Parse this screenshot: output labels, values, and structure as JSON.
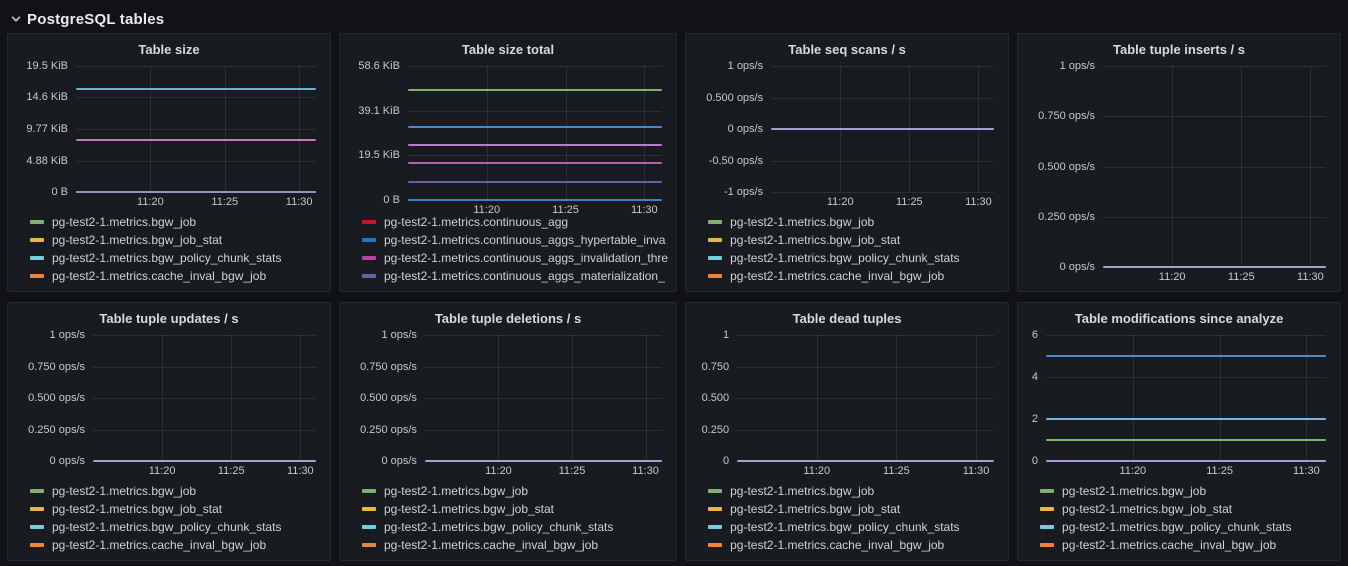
{
  "row_header": {
    "title": "PostgreSQL tables"
  },
  "colors": {
    "page_bg": "#111217",
    "panel_bg": "#181b1f",
    "grid_line": "rgba(204,204,220,0.11)",
    "text_primary": "#d8d9da",
    "text_secondary": "#c7c8cd"
  },
  "panels": [
    {
      "title": "Table size",
      "chart_data": {
        "type": "line",
        "x_ticks": [
          "11:20",
          "11:25",
          "11:30"
        ],
        "ylim": [
          0,
          19.53
        ],
        "ylabel_unit": "KiB",
        "y_ticks": [
          {
            "label": "19.5 KiB",
            "value": 19.53
          },
          {
            "label": "14.6 KiB",
            "value": 14.65
          },
          {
            "label": "9.77 KiB",
            "value": 9.77
          },
          {
            "label": "4.88 KiB",
            "value": 4.88
          },
          {
            "label": "0 B",
            "value": 0
          }
        ],
        "lines": [
          {
            "value": 16,
            "color": "#64b6d8"
          },
          {
            "value": 8,
            "color": "#c678c6"
          },
          {
            "value": 0,
            "color": "#9a8fc9"
          }
        ],
        "legend": [
          {
            "label": "pg-test2-1.metrics.bgw_job",
            "color": "#7EB26D"
          },
          {
            "label": "pg-test2-1.metrics.bgw_job_stat",
            "color": "#EAB839"
          },
          {
            "label": "pg-test2-1.metrics.bgw_policy_chunk_stats",
            "color": "#6ED0E0"
          },
          {
            "label": "pg-test2-1.metrics.cache_inval_bgw_job",
            "color": "#EF843C"
          }
        ],
        "legend_clipped": false
      }
    },
    {
      "title": "Table size total",
      "chart_data": {
        "type": "line",
        "x_ticks": [
          "11:20",
          "11:25",
          "11:30"
        ],
        "ylim": [
          0,
          58.59
        ],
        "ylabel_unit": "KiB",
        "y_ticks": [
          {
            "label": "58.6 KiB",
            "value": 58.59
          },
          {
            "label": "39.1 KiB",
            "value": 39.06
          },
          {
            "label": "19.5 KiB",
            "value": 19.53
          },
          {
            "label": "0 B",
            "value": 0
          }
        ],
        "lines": [
          {
            "value": 48,
            "color": "#7EB26D"
          },
          {
            "value": 32,
            "color": "#5285c7"
          },
          {
            "value": 24,
            "color": "#c678c6"
          },
          {
            "value": 16,
            "color": "#b75fb3"
          },
          {
            "value": 8,
            "color": "#705DA0"
          },
          {
            "value": 0,
            "color": "#447ebf"
          }
        ],
        "legend": [
          {
            "label": "pg-test2-1.metrics.continuous_agg",
            "color": "#C4162A"
          },
          {
            "label": "pg-test2-1.metrics.continuous_aggs_hypertable_inva",
            "color": "#1F78C1"
          },
          {
            "label": "pg-test2-1.metrics.continuous_aggs_invalidation_thre",
            "color": "#BA43A9"
          },
          {
            "label": "pg-test2-1.metrics.continuous_aggs_materialization_",
            "color": "#705DA0"
          }
        ],
        "legend_clipped": true
      }
    },
    {
      "title": "Table seq scans / s",
      "chart_data": {
        "type": "line",
        "x_ticks": [
          "11:20",
          "11:25",
          "11:30"
        ],
        "ylim": [
          -1,
          1
        ],
        "ylabel_unit": "ops/s",
        "y_ticks": [
          {
            "label": "1 ops/s",
            "value": 1
          },
          {
            "label": "0.500 ops/s",
            "value": 0.5
          },
          {
            "label": "0 ops/s",
            "value": 0
          },
          {
            "label": "-0.50 ops/s",
            "value": -0.5
          },
          {
            "label": "-1 ops/s",
            "value": -1
          }
        ],
        "lines": [
          {
            "value": 0,
            "color": "#a79fd0"
          }
        ],
        "legend": [
          {
            "label": "pg-test2-1.metrics.bgw_job",
            "color": "#7EB26D"
          },
          {
            "label": "pg-test2-1.metrics.bgw_job_stat",
            "color": "#EAB839"
          },
          {
            "label": "pg-test2-1.metrics.bgw_policy_chunk_stats",
            "color": "#6ED0E0"
          },
          {
            "label": "pg-test2-1.metrics.cache_inval_bgw_job",
            "color": "#EF843C"
          }
        ],
        "legend_clipped": false
      }
    },
    {
      "title": "Table tuple inserts / s",
      "chart_data": {
        "type": "line",
        "x_ticks": [
          "11:20",
          "11:25",
          "11:30"
        ],
        "ylim": [
          0,
          1
        ],
        "ylabel_unit": "ops/s",
        "y_ticks": [
          {
            "label": "1 ops/s",
            "value": 1
          },
          {
            "label": "0.750 ops/s",
            "value": 0.75
          },
          {
            "label": "0.500 ops/s",
            "value": 0.5
          },
          {
            "label": "0.250 ops/s",
            "value": 0.25
          },
          {
            "label": "0 ops/s",
            "value": 0
          }
        ],
        "lines": [
          {
            "value": 0,
            "color": "#a79fd0"
          }
        ],
        "legend": [],
        "legend_clipped": false
      }
    },
    {
      "title": "Table tuple updates / s",
      "chart_data": {
        "type": "line",
        "x_ticks": [
          "11:20",
          "11:25",
          "11:30"
        ],
        "ylim": [
          0,
          1
        ],
        "ylabel_unit": "ops/s",
        "y_ticks": [
          {
            "label": "1 ops/s",
            "value": 1
          },
          {
            "label": "0.750 ops/s",
            "value": 0.75
          },
          {
            "label": "0.500 ops/s",
            "value": 0.5
          },
          {
            "label": "0.250 ops/s",
            "value": 0.25
          },
          {
            "label": "0 ops/s",
            "value": 0
          }
        ],
        "lines": [
          {
            "value": 0,
            "color": "#a79fd0"
          }
        ],
        "legend": [
          {
            "label": "pg-test2-1.metrics.bgw_job",
            "color": "#7EB26D"
          },
          {
            "label": "pg-test2-1.metrics.bgw_job_stat",
            "color": "#EAB839"
          },
          {
            "label": "pg-test2-1.metrics.bgw_policy_chunk_stats",
            "color": "#6ED0E0"
          },
          {
            "label": "pg-test2-1.metrics.cache_inval_bgw_job",
            "color": "#EF843C"
          }
        ],
        "legend_clipped": false
      }
    },
    {
      "title": "Table tuple deletions / s",
      "chart_data": {
        "type": "line",
        "x_ticks": [
          "11:20",
          "11:25",
          "11:30"
        ],
        "ylim": [
          0,
          1
        ],
        "ylabel_unit": "ops/s",
        "y_ticks": [
          {
            "label": "1 ops/s",
            "value": 1
          },
          {
            "label": "0.750 ops/s",
            "value": 0.75
          },
          {
            "label": "0.500 ops/s",
            "value": 0.5
          },
          {
            "label": "0.250 ops/s",
            "value": 0.25
          },
          {
            "label": "0 ops/s",
            "value": 0
          }
        ],
        "lines": [
          {
            "value": 0,
            "color": "#a79fd0"
          }
        ],
        "legend": [
          {
            "label": "pg-test2-1.metrics.bgw_job",
            "color": "#7EB26D"
          },
          {
            "label": "pg-test2-1.metrics.bgw_job_stat",
            "color": "#EAB839"
          },
          {
            "label": "pg-test2-1.metrics.bgw_policy_chunk_stats",
            "color": "#6ED0E0"
          },
          {
            "label": "pg-test2-1.metrics.cache_inval_bgw_job",
            "color": "#EF843C"
          }
        ],
        "legend_clipped": false
      }
    },
    {
      "title": "Table dead tuples",
      "chart_data": {
        "type": "line",
        "x_ticks": [
          "11:20",
          "11:25",
          "11:30"
        ],
        "ylim": [
          0,
          1
        ],
        "ylabel_unit": "",
        "y_ticks": [
          {
            "label": "1",
            "value": 1
          },
          {
            "label": "0.750",
            "value": 0.75
          },
          {
            "label": "0.500",
            "value": 0.5
          },
          {
            "label": "0.250",
            "value": 0.25
          },
          {
            "label": "0",
            "value": 0
          }
        ],
        "lines": [
          {
            "value": 0,
            "color": "#a79fd0"
          }
        ],
        "legend": [
          {
            "label": "pg-test2-1.metrics.bgw_job",
            "color": "#7EB26D"
          },
          {
            "label": "pg-test2-1.metrics.bgw_job_stat",
            "color": "#EAB839"
          },
          {
            "label": "pg-test2-1.metrics.bgw_policy_chunk_stats",
            "color": "#6ED0E0"
          },
          {
            "label": "pg-test2-1.metrics.cache_inval_bgw_job",
            "color": "#EF843C"
          }
        ],
        "legend_clipped": false
      }
    },
    {
      "title": "Table modifications since analyze",
      "chart_data": {
        "type": "line",
        "x_ticks": [
          "11:20",
          "11:25",
          "11:30"
        ],
        "ylim": [
          0,
          6
        ],
        "ylabel_unit": "",
        "y_ticks": [
          {
            "label": "6",
            "value": 6
          },
          {
            "label": "4",
            "value": 4
          },
          {
            "label": "2",
            "value": 2
          },
          {
            "label": "0",
            "value": 0
          }
        ],
        "lines": [
          {
            "value": 5,
            "color": "#5285c7"
          },
          {
            "value": 2,
            "color": "#79b2dc"
          },
          {
            "value": 1,
            "color": "#7EB26D"
          },
          {
            "value": 0,
            "color": "#a899d6"
          }
        ],
        "legend": [
          {
            "label": "pg-test2-1.metrics.bgw_job",
            "color": "#7EB26D"
          },
          {
            "label": "pg-test2-1.metrics.bgw_job_stat",
            "color": "#EAB839"
          },
          {
            "label": "pg-test2-1.metrics.bgw_policy_chunk_stats",
            "color": "#6ED0E0"
          },
          {
            "label": "pg-test2-1.metrics.cache_inval_bgw_job",
            "color": "#EF843C"
          }
        ],
        "legend_clipped": false
      }
    }
  ]
}
